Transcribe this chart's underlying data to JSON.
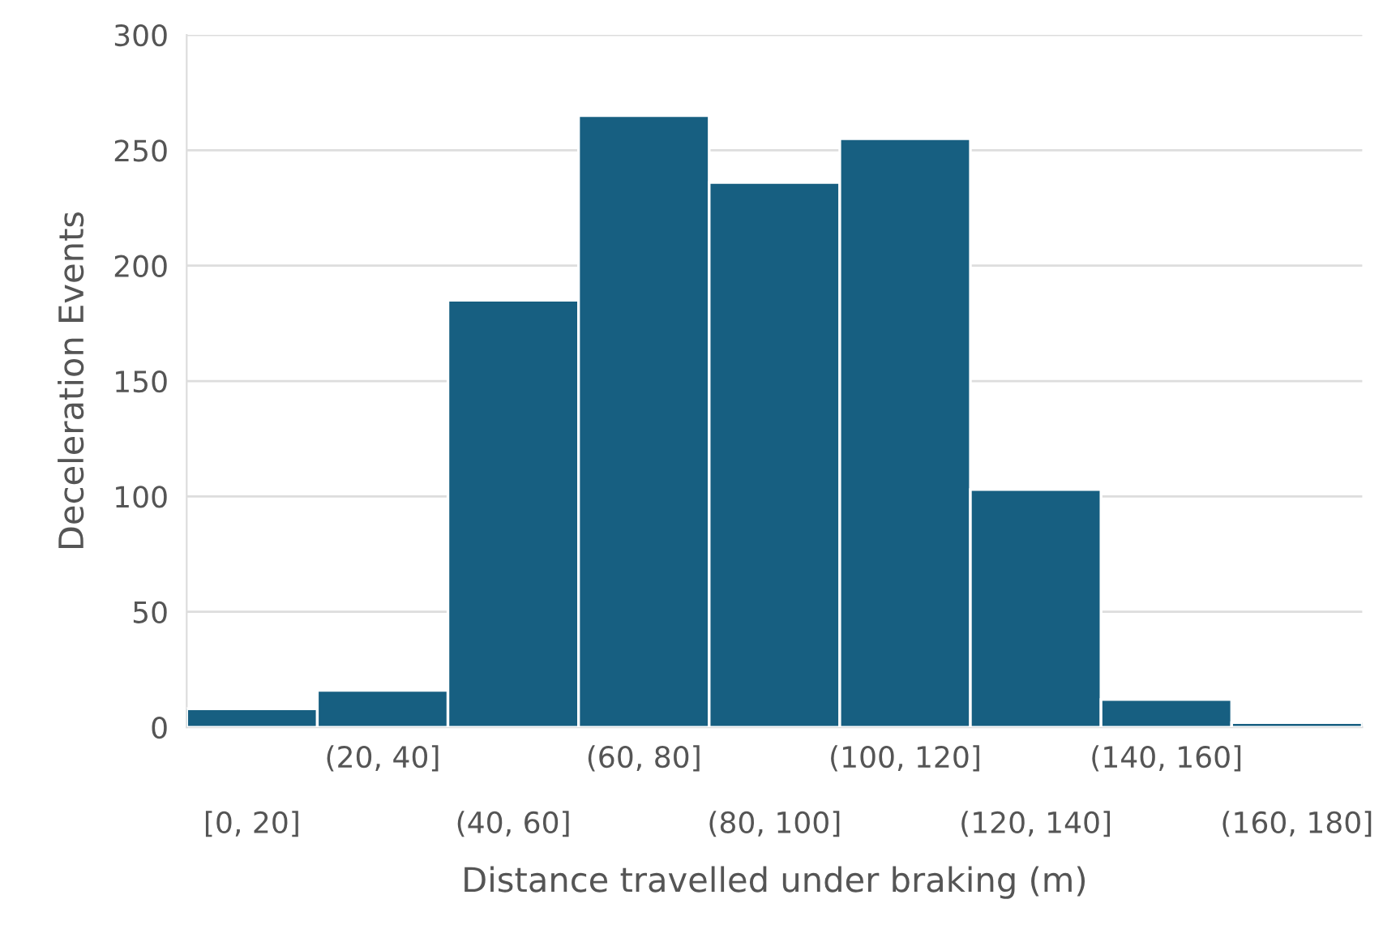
{
  "chart_data": {
    "type": "bar",
    "xlabel": "Distance travelled under braking (m)",
    "ylabel": "Deceleration Events",
    "categories": [
      "[0, 20]",
      "(20, 40]",
      "(40, 60]",
      "(60, 80]",
      "(80, 100]",
      "(100, 120]",
      "(120, 140]",
      "(140, 160]",
      "(160, 180]"
    ],
    "values": [
      8,
      16,
      185,
      265,
      236,
      255,
      103,
      12,
      2
    ],
    "color": "#175f81",
    "ylim": [
      0,
      300
    ],
    "yticks": [
      0,
      50,
      100,
      150,
      200,
      250,
      300
    ],
    "grid": "y"
  }
}
